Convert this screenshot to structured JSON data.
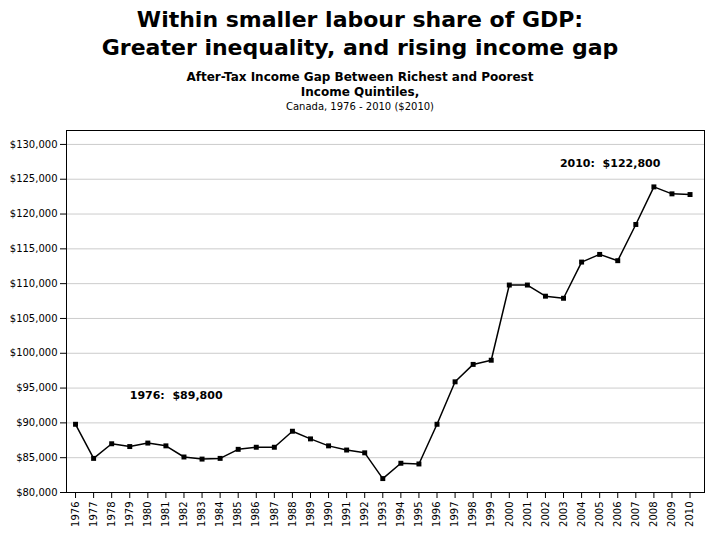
{
  "chart_data": {
    "type": "line",
    "title": [
      "Within smaller labour share of GDP:",
      "Greater inequality, and rising income gap"
    ],
    "subtitle": [
      "After-Tax Income Gap Between Richest and Poorest",
      "Income Quintiles,",
      "Canada, 1976 - 2010 ($2010)"
    ],
    "x": [
      1976,
      1977,
      1978,
      1979,
      1980,
      1981,
      1982,
      1983,
      1984,
      1985,
      1986,
      1987,
      1988,
      1989,
      1990,
      1991,
      1992,
      1993,
      1994,
      1995,
      1996,
      1997,
      1998,
      1999,
      2000,
      2001,
      2002,
      2003,
      2004,
      2005,
      2006,
      2007,
      2008,
      2009,
      2010
    ],
    "values": [
      89800,
      84900,
      87000,
      86600,
      87100,
      86700,
      85100,
      84800,
      84900,
      86200,
      86500,
      86500,
      88800,
      87700,
      86700,
      86100,
      85700,
      82000,
      84200,
      84100,
      89800,
      95900,
      98400,
      99000,
      109800,
      109800,
      108200,
      107900,
      113100,
      114200,
      113300,
      118500,
      123900,
      122900,
      122800
    ],
    "marker": "square",
    "xlim": [
      1975.5,
      2010.8
    ],
    "xticks": [
      1976,
      1977,
      1978,
      1979,
      1980,
      1981,
      1982,
      1983,
      1984,
      1985,
      1986,
      1987,
      1988,
      1989,
      1990,
      1991,
      1992,
      1993,
      1994,
      1995,
      1996,
      1997,
      1998,
      1999,
      2000,
      2001,
      2002,
      2003,
      2004,
      2005,
      2006,
      2007,
      2008,
      2009,
      2010
    ],
    "ylim": [
      80000,
      132000
    ],
    "yticks": [
      {
        "value": 80000,
        "label": "$80,000"
      },
      {
        "value": 85000,
        "label": "$85,000"
      },
      {
        "value": 90000,
        "label": "$90,000"
      },
      {
        "value": 95000,
        "label": "$95,000"
      },
      {
        "value": 100000,
        "label": "$100,000"
      },
      {
        "value": 105000,
        "label": "$105,000"
      },
      {
        "value": 110000,
        "label": "$110,000"
      },
      {
        "value": 115000,
        "label": "$115,000"
      },
      {
        "value": 120000,
        "label": "$120,000"
      },
      {
        "value": 125000,
        "label": "$125,000"
      },
      {
        "value": 130000,
        "label": "$130,000"
      }
    ],
    "grid": "y",
    "annotations": [
      {
        "text": "1976:  $89,800",
        "x": 1979,
        "y": 93500
      },
      {
        "text": "2010:  $122,800",
        "x": 2002.8,
        "y": 126800
      }
    ]
  }
}
